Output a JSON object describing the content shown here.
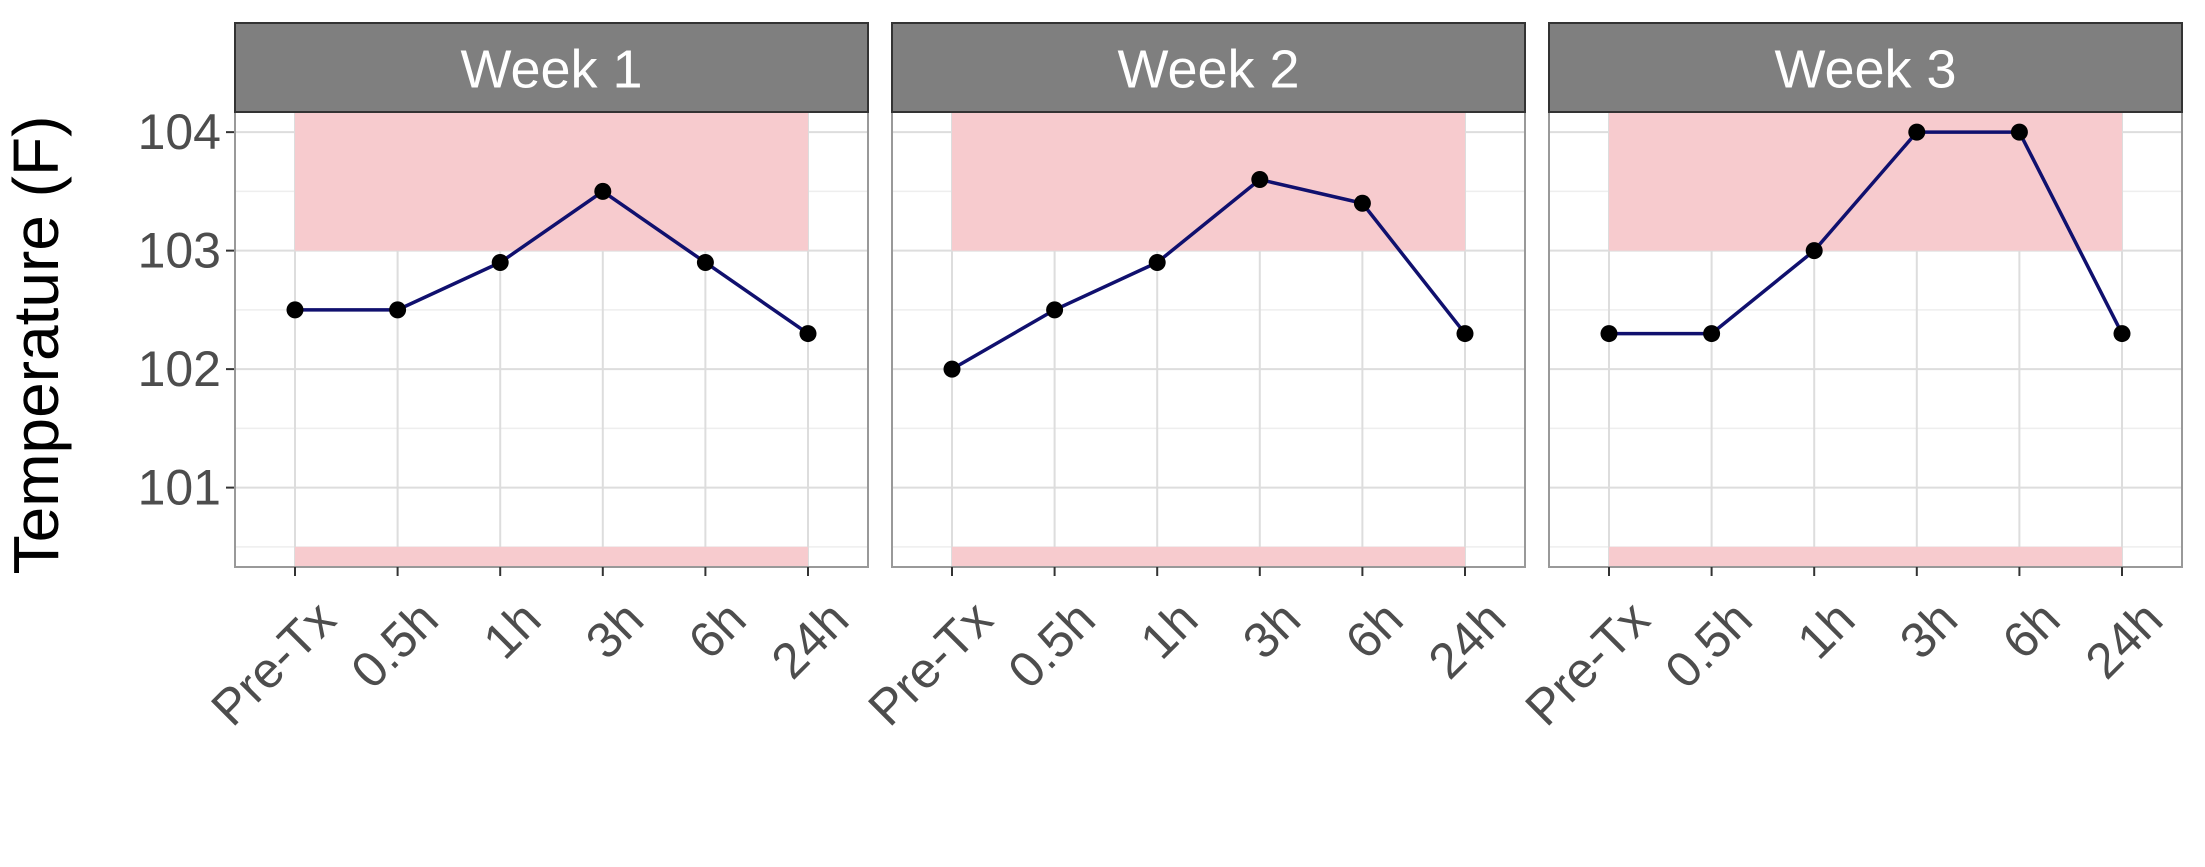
{
  "chart_data": {
    "type": "line",
    "ylabel": "Temperature (F)",
    "xlabel": "",
    "title": "",
    "categories": [
      "Pre-Tx",
      "0.5h",
      "1h",
      "3h",
      "6h",
      "24h"
    ],
    "yticks": [
      101,
      102,
      103,
      104
    ],
    "ylim": [
      100.33,
      104.17
    ],
    "grid": true,
    "shaded_bands": [
      {
        "y_from": 103,
        "y_to": 104.17
      },
      {
        "y_from": 100.33,
        "y_to": 100.5
      }
    ],
    "panels": [
      {
        "name": "Week 1",
        "values": [
          102.5,
          102.5,
          102.9,
          103.5,
          102.9,
          102.3
        ]
      },
      {
        "name": "Week 2",
        "values": [
          102.0,
          102.5,
          102.9,
          103.6,
          103.4,
          102.3
        ]
      },
      {
        "name": "Week 3",
        "values": [
          102.3,
          102.3,
          103.0,
          104.0,
          104.0,
          102.3
        ]
      }
    ]
  },
  "colors": {
    "line": "#10106e",
    "point": "#000000",
    "band": "#f7cbce",
    "strip_bg": "#7f7f7f",
    "panel_border": "#999999",
    "grid_major": "#dddddd",
    "grid_minor": "#eeeeee",
    "tick_text": "#4d4d4d"
  }
}
